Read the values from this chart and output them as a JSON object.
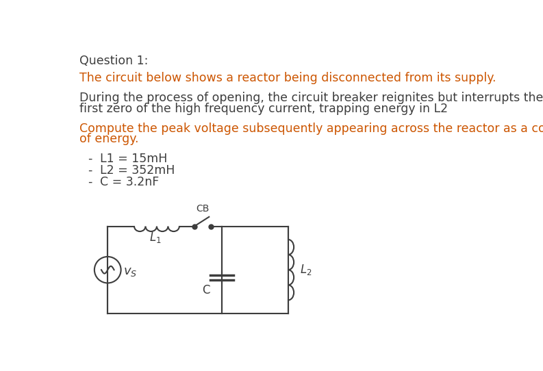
{
  "title": "Question 1:",
  "title_color": "#3d3d3d",
  "line1": "The circuit below shows a reactor being disconnected from its supply.",
  "line1_color": "#cc5500",
  "line2a": "During the process of opening, the circuit breaker reignites but interrupts the reignition current at the",
  "line2b": "first zero of the high frequency current, trapping energy in L2",
  "line2_color": "#3d3d3d",
  "line3a": "Compute the peak voltage subsequently appearing across the reactor as a consequence of this trapping",
  "line3b": "of energy.",
  "line3_color": "#cc5500",
  "params": [
    "L1 = 15mH",
    "L2 = 352mH",
    "C = 3.2nF"
  ],
  "params_color": "#3d3d3d",
  "bg_color": "#ffffff",
  "circuit_color": "#3d3d3d",
  "font_size": 12.5
}
